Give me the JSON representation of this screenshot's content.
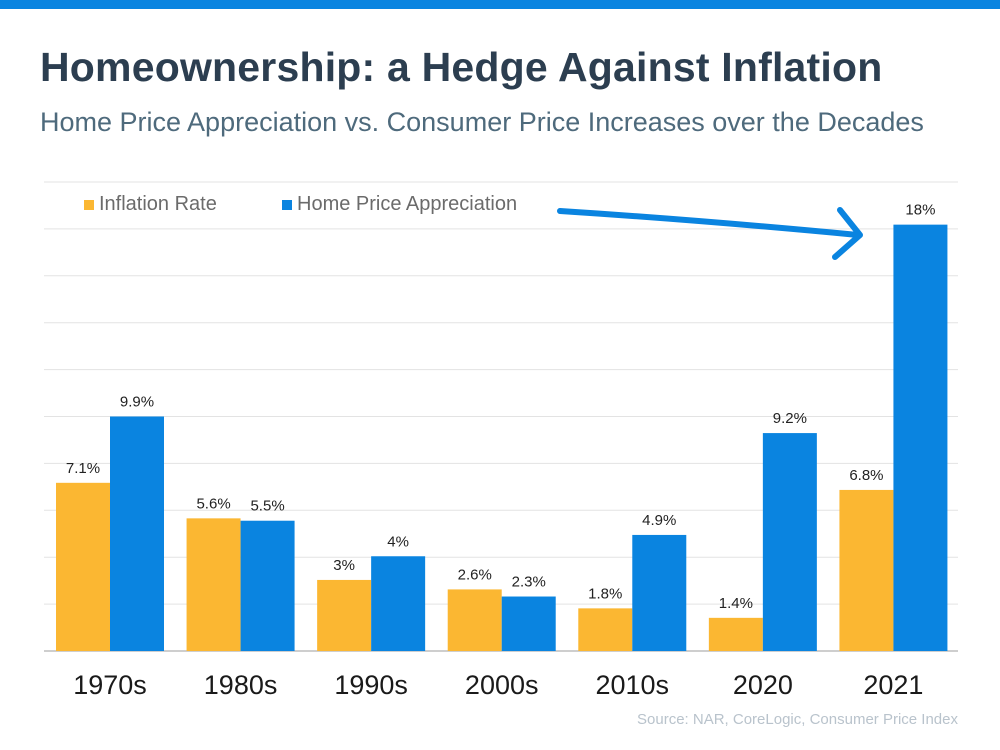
{
  "header": {
    "title": "Homeownership: a Hedge Against Inflation",
    "subtitle": "Home Price Appreciation vs. Consumer Price Increases over the Decades"
  },
  "source": "Source: NAR, CoreLogic, Consumer Price Index",
  "colors": {
    "top_bar": "#0a84e0",
    "inflation": "#fbb732",
    "appreciation": "#0a84e0",
    "arrow": "#0a84e0"
  },
  "chart_data": {
    "type": "bar",
    "title": "",
    "xlabel": "",
    "ylabel": "",
    "ylim": [
      0,
      19.8
    ],
    "grid": true,
    "legend_position": "top-left",
    "categories": [
      "1970s",
      "1980s",
      "1990s",
      "2000s",
      "2010s",
      "2020",
      "2021"
    ],
    "series": [
      {
        "name": "Inflation Rate",
        "color": "#fbb732",
        "values": [
          7.1,
          5.6,
          3,
          2.6,
          1.8,
          1.4,
          6.8
        ],
        "labels": [
          "7.1%",
          "5.6%",
          "3%",
          "2.6%",
          "1.8%",
          "1.4%",
          "6.8%"
        ]
      },
      {
        "name": "Home Price Appreciation",
        "color": "#0a84e0",
        "values": [
          9.9,
          5.5,
          4,
          2.3,
          4.9,
          9.2,
          18
        ],
        "labels": [
          "9.9%",
          "5.5%",
          "4%",
          "2.3%",
          "4.9%",
          "9.2%",
          "18%"
        ]
      }
    ]
  }
}
